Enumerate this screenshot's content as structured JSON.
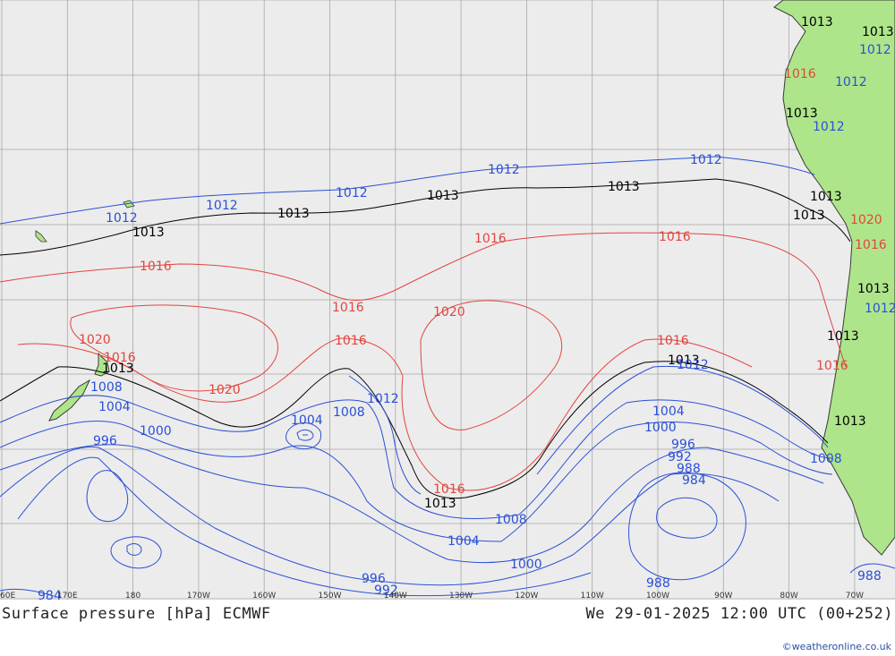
{
  "title_left": "Surface pressure [hPa] ECMWF",
  "title_right": "We 29-01-2025 12:00 UTC (00+252)",
  "credit": "©weatheronline.co.uk",
  "colors": {
    "ocean": "#ececec",
    "grid": "#a8a8a8",
    "land": "#aee58a",
    "coast": "#3a3a3a",
    "isobar_low": "#2b50d6",
    "isobar_ref": "#000000",
    "isobar_high": "#e2453f"
  },
  "longitude_labels": [
    "60E",
    "170E",
    "180",
    "170W",
    "160W",
    "150W",
    "140W",
    "130W",
    "120W",
    "110W",
    "100W",
    "90W",
    "80W",
    "70W"
  ],
  "isobar_labels": [
    {
      "value": "1013",
      "kind": "ref"
    },
    {
      "value": "1012",
      "kind": "low"
    },
    {
      "value": "1016",
      "kind": "high"
    },
    {
      "value": "1020",
      "kind": "high"
    },
    {
      "value": "1008",
      "kind": "low"
    },
    {
      "value": "1004",
      "kind": "low"
    },
    {
      "value": "1000",
      "kind": "low"
    },
    {
      "value": "996",
      "kind": "low"
    },
    {
      "value": "992",
      "kind": "low"
    },
    {
      "value": "988",
      "kind": "low"
    },
    {
      "value": "984",
      "kind": "low"
    }
  ]
}
